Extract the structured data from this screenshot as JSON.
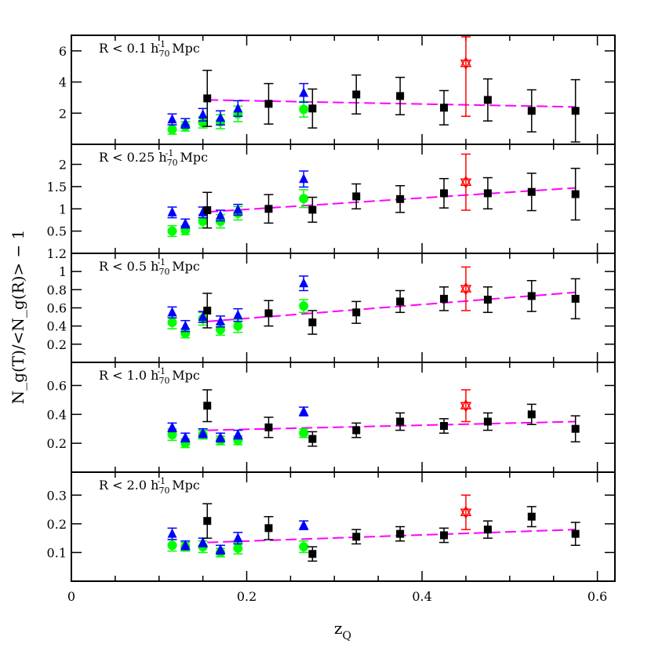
{
  "chart_data": {
    "type": "scatter",
    "xlabel": "z",
    "xlabel_sub": "Q",
    "ylabel": "N_g(T)/<N_g(R)> − 1",
    "xlim": [
      0,
      0.62
    ],
    "x_ticks": [
      "0",
      "0.2",
      "0.4",
      "0.6"
    ],
    "panels": [
      {
        "label": "R < 0.1 h",
        "label_sub": "70",
        "label_sup": "-1",
        "label_unit": " Mpc",
        "ylim": [
          0,
          7
        ],
        "y_ticks": [
          {
            "v": 2,
            "t": "2"
          },
          {
            "v": 4,
            "t": "4"
          },
          {
            "v": 6,
            "t": "6"
          }
        ],
        "fit": [
          [
            0.155,
            2.85
          ],
          [
            0.575,
            2.4
          ]
        ],
        "black": [
          [
            0.155,
            2.95,
            1.8
          ],
          [
            0.225,
            2.6,
            1.3
          ],
          [
            0.275,
            2.3,
            1.25
          ],
          [
            0.325,
            3.2,
            1.25
          ],
          [
            0.375,
            3.1,
            1.2
          ],
          [
            0.425,
            2.35,
            1.1
          ],
          [
            0.475,
            2.85,
            1.35
          ],
          [
            0.525,
            2.15,
            1.35
          ],
          [
            0.575,
            2.15,
            2.0
          ]
        ],
        "blue": [
          [
            0.115,
            1.6,
            0.35
          ],
          [
            0.13,
            1.35,
            0.3
          ],
          [
            0.15,
            1.9,
            0.4
          ],
          [
            0.17,
            1.7,
            0.45
          ],
          [
            0.19,
            2.3,
            0.5
          ],
          [
            0.265,
            3.3,
            0.6
          ]
        ],
        "green": [
          [
            0.115,
            0.95,
            0.3
          ],
          [
            0.13,
            1.15,
            0.3
          ],
          [
            0.15,
            1.4,
            0.35
          ],
          [
            0.17,
            1.45,
            0.45
          ],
          [
            0.19,
            1.95,
            0.5
          ],
          [
            0.265,
            2.25,
            0.5
          ]
        ],
        "red": [
          [
            0.45,
            5.2,
            3.4
          ]
        ]
      },
      {
        "label": "R < 0.25 h",
        "label_sub": "70",
        "label_sup": "-1",
        "label_unit": " Mpc",
        "ylim": [
          0,
          2.45
        ],
        "y_ticks": [
          {
            "v": 0.5,
            "t": "0.5"
          },
          {
            "v": 1,
            "t": "1"
          },
          {
            "v": 1.5,
            "t": "1.5"
          },
          {
            "v": 2,
            "t": "2"
          }
        ],
        "fit": [
          [
            0.155,
            0.93
          ],
          [
            0.575,
            1.47
          ]
        ],
        "black": [
          [
            0.155,
            0.97,
            0.4
          ],
          [
            0.225,
            1.0,
            0.32
          ],
          [
            0.275,
            0.98,
            0.28
          ],
          [
            0.325,
            1.28,
            0.28
          ],
          [
            0.375,
            1.22,
            0.3
          ],
          [
            0.425,
            1.35,
            0.33
          ],
          [
            0.475,
            1.35,
            0.35
          ],
          [
            0.525,
            1.38,
            0.42
          ],
          [
            0.575,
            1.33,
            0.58
          ]
        ],
        "blue": [
          [
            0.115,
            0.92,
            0.12
          ],
          [
            0.13,
            0.67,
            0.1
          ],
          [
            0.15,
            0.92,
            0.12
          ],
          [
            0.17,
            0.85,
            0.12
          ],
          [
            0.19,
            0.98,
            0.12
          ],
          [
            0.265,
            1.67,
            0.18
          ]
        ],
        "green": [
          [
            0.115,
            0.5,
            0.12
          ],
          [
            0.13,
            0.52,
            0.1
          ],
          [
            0.15,
            0.72,
            0.15
          ],
          [
            0.17,
            0.72,
            0.15
          ],
          [
            0.19,
            0.9,
            0.15
          ],
          [
            0.265,
            1.23,
            0.2
          ]
        ],
        "red": [
          [
            0.45,
            1.6,
            0.63
          ]
        ]
      },
      {
        "label": "R < 0.5 h",
        "label_sub": "70",
        "label_sup": "-1",
        "label_unit": " Mpc",
        "ylim": [
          0,
          1.2
        ],
        "y_ticks": [
          {
            "v": 0.2,
            "t": "0.2"
          },
          {
            "v": 0.4,
            "t": "0.4"
          },
          {
            "v": 0.6,
            "t": "0.6"
          },
          {
            "v": 0.8,
            "t": "0.8"
          },
          {
            "v": 1,
            "t": "1"
          },
          {
            "v": 1.2,
            "t": "1.2"
          }
        ],
        "fit": [
          [
            0.155,
            0.45
          ],
          [
            0.575,
            0.77
          ]
        ],
        "black": [
          [
            0.155,
            0.57,
            0.19
          ],
          [
            0.225,
            0.54,
            0.14
          ],
          [
            0.275,
            0.44,
            0.13
          ],
          [
            0.325,
            0.55,
            0.12
          ],
          [
            0.375,
            0.67,
            0.12
          ],
          [
            0.425,
            0.7,
            0.13
          ],
          [
            0.475,
            0.69,
            0.14
          ],
          [
            0.525,
            0.73,
            0.17
          ],
          [
            0.575,
            0.7,
            0.22
          ]
        ],
        "blue": [
          [
            0.115,
            0.55,
            0.06
          ],
          [
            0.13,
            0.4,
            0.06
          ],
          [
            0.15,
            0.5,
            0.06
          ],
          [
            0.17,
            0.45,
            0.06
          ],
          [
            0.19,
            0.52,
            0.07
          ],
          [
            0.265,
            0.87,
            0.08
          ]
        ],
        "green": [
          [
            0.115,
            0.44,
            0.07
          ],
          [
            0.13,
            0.32,
            0.05
          ],
          [
            0.15,
            0.48,
            0.07
          ],
          [
            0.17,
            0.36,
            0.06
          ],
          [
            0.19,
            0.4,
            0.07
          ],
          [
            0.265,
            0.62,
            0.07
          ]
        ],
        "red": [
          [
            0.45,
            0.81,
            0.24
          ]
        ]
      },
      {
        "label": "R < 1.0 h",
        "label_sub": "70",
        "label_sup": "-1",
        "label_unit": " Mpc",
        "ylim": [
          0,
          0.76
        ],
        "y_ticks": [
          {
            "v": 0.2,
            "t": "0.2"
          },
          {
            "v": 0.4,
            "t": "0.4"
          },
          {
            "v": 0.6,
            "t": "0.6"
          }
        ],
        "fit": [
          [
            0.155,
            0.29
          ],
          [
            0.575,
            0.35
          ]
        ],
        "black": [
          [
            0.155,
            0.46,
            0.11
          ],
          [
            0.225,
            0.31,
            0.07
          ],
          [
            0.275,
            0.23,
            0.05
          ],
          [
            0.325,
            0.29,
            0.05
          ],
          [
            0.375,
            0.35,
            0.06
          ],
          [
            0.425,
            0.32,
            0.05
          ],
          [
            0.475,
            0.35,
            0.06
          ],
          [
            0.525,
            0.4,
            0.07
          ],
          [
            0.575,
            0.3,
            0.09
          ]
        ],
        "blue": [
          [
            0.115,
            0.31,
            0.03
          ],
          [
            0.13,
            0.24,
            0.03
          ],
          [
            0.15,
            0.27,
            0.03
          ],
          [
            0.17,
            0.24,
            0.03
          ],
          [
            0.19,
            0.26,
            0.03
          ],
          [
            0.265,
            0.42,
            0.03
          ]
        ],
        "green": [
          [
            0.115,
            0.26,
            0.04
          ],
          [
            0.13,
            0.2,
            0.03
          ],
          [
            0.15,
            0.26,
            0.03
          ],
          [
            0.17,
            0.22,
            0.03
          ],
          [
            0.19,
            0.22,
            0.03
          ],
          [
            0.265,
            0.27,
            0.03
          ]
        ],
        "red": [
          [
            0.45,
            0.46,
            0.11
          ]
        ]
      },
      {
        "label": "R < 2.0 h",
        "label_sub": "70",
        "label_sup": "-1",
        "label_unit": " Mpc",
        "ylim": [
          0,
          0.38
        ],
        "y_ticks": [
          {
            "v": 0.1,
            "t": "0.1"
          },
          {
            "v": 0.2,
            "t": "0.2"
          },
          {
            "v": 0.3,
            "t": "0.3"
          }
        ],
        "fit": [
          [
            0.155,
            0.135
          ],
          [
            0.575,
            0.18
          ]
        ],
        "black": [
          [
            0.155,
            0.21,
            0.06
          ],
          [
            0.225,
            0.185,
            0.04
          ],
          [
            0.275,
            0.095,
            0.025
          ],
          [
            0.325,
            0.155,
            0.025
          ],
          [
            0.375,
            0.165,
            0.025
          ],
          [
            0.425,
            0.16,
            0.025
          ],
          [
            0.475,
            0.18,
            0.03
          ],
          [
            0.525,
            0.225,
            0.035
          ],
          [
            0.575,
            0.165,
            0.04
          ]
        ],
        "blue": [
          [
            0.115,
            0.165,
            0.02
          ],
          [
            0.13,
            0.125,
            0.015
          ],
          [
            0.15,
            0.135,
            0.015
          ],
          [
            0.17,
            0.11,
            0.015
          ],
          [
            0.19,
            0.15,
            0.02
          ],
          [
            0.265,
            0.195,
            0.015
          ]
        ],
        "green": [
          [
            0.115,
            0.125,
            0.02
          ],
          [
            0.13,
            0.12,
            0.015
          ],
          [
            0.15,
            0.12,
            0.02
          ],
          [
            0.17,
            0.1,
            0.015
          ],
          [
            0.19,
            0.115,
            0.02
          ],
          [
            0.265,
            0.12,
            0.02
          ]
        ],
        "red": [
          [
            0.45,
            0.24,
            0.06
          ]
        ]
      }
    ],
    "colors": {
      "black": "#000000",
      "blue": "#0000ff",
      "green": "#00ff00",
      "red": "#ff0000",
      "fit": "#ff00ff",
      "frame": "#000000"
    }
  }
}
